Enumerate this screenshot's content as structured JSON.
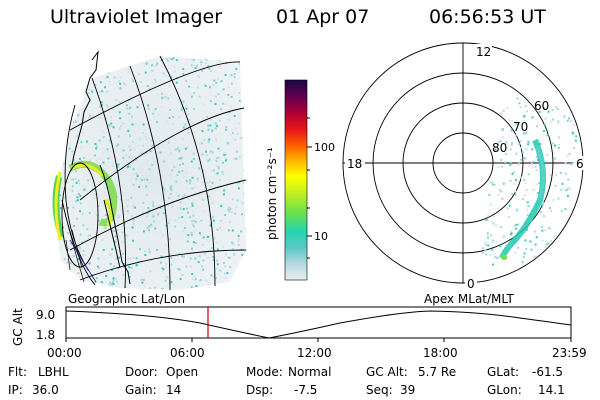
{
  "header": {
    "title": "Ultraviolet Imager",
    "date": "01 Apr 07",
    "time": "06:56:53 UT"
  },
  "colorbar": {
    "unit_label": "photon cm⁻²s⁻¹",
    "tick_labels": [
      "100",
      "10"
    ],
    "gradient_colors": [
      "#e8eef0",
      "#b5d9df",
      "#5cc8c8",
      "#24d4b0",
      "#6ce24a",
      "#c8f020",
      "#ffff00",
      "#ffb000",
      "#ff6000",
      "#e81818",
      "#b00030",
      "#600050",
      "#180a40"
    ]
  },
  "left_panel": {
    "caption": "Geographic Lat/Lon"
  },
  "right_panel": {
    "caption": "Apex MLat/MLT",
    "mlt_labels": [
      "12",
      "18",
      "6",
      "0"
    ],
    "lat_labels": [
      "60",
      "70",
      "80"
    ]
  },
  "timeline": {
    "axis_label": "GC Alt",
    "y_ticks": [
      "9.0",
      "1.8"
    ],
    "x_ticks": [
      "00:00",
      "06:00",
      "12:00",
      "18:00",
      "23:59"
    ],
    "marker_color": "#d00000"
  },
  "status": {
    "rows": [
      [
        {
          "label": "Flt:",
          "value": "LBHL"
        },
        {
          "label": "Door:",
          "value": "Open"
        },
        {
          "label": "Mode:",
          "value": "Normal"
        },
        {
          "label": "GC Alt:",
          "value": "5.7 Re"
        },
        {
          "label": "GLat:",
          "value": "-61.5"
        }
      ],
      [
        {
          "label": "IP:",
          "value": "36.0"
        },
        {
          "label": "Gain:",
          "value": "14"
        },
        {
          "label": "Dsp:",
          "value": "-7.5"
        },
        {
          "label": "Seq:",
          "value": "39"
        },
        {
          "label": "GLon:",
          "value": "14.1"
        }
      ]
    ]
  }
}
